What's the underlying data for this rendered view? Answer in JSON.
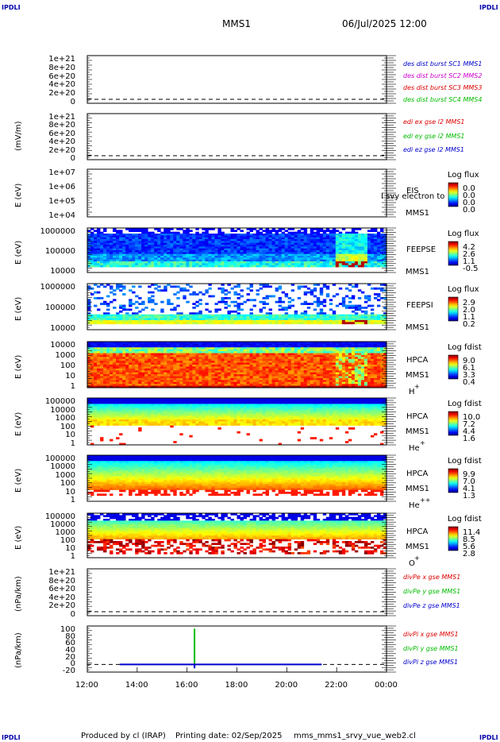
{
  "header": {
    "corner_label": "IPDLI",
    "mission": "MMS1",
    "datetime": "06/Jul/2025 12:00"
  },
  "footer": {
    "produced": "Produced by cl (IRAP)",
    "printing": "Printing date: 02/Sep/2025",
    "file": "mms_mms1_srvy_vue_web2.cl"
  },
  "chart_data": [
    {
      "type": "line",
      "ylabel": "",
      "yticks": [
        "1e+21",
        "8e+20",
        "6e+20",
        "4e+20",
        "2e+20",
        "0"
      ],
      "legend": [
        {
          "text": "des dist burst SC1 MMS1",
          "color": "#0000cc"
        },
        {
          "text": "des dist burst SC2 MMS2",
          "color": "#cc00cc"
        },
        {
          "text": "des dist burst SC3 MMS3",
          "color": "#dd0000"
        },
        {
          "text": "des dist burst SC4 MMS4",
          "color": "#00bb00"
        }
      ]
    },
    {
      "type": "line",
      "ylabel": "(mV/m)",
      "yticks": [
        "1e+21",
        "8e+20",
        "6e+20",
        "4e+20",
        "2e+20",
        "0"
      ],
      "legend": [
        {
          "text": "edi ex gse l2 MMS1",
          "color": "#dd0000"
        },
        {
          "text": "edi ey gse l2 MMS1",
          "color": "#00bb00"
        },
        {
          "text": "edi ez gse l2 MMS1",
          "color": "#0000cc"
        }
      ]
    },
    {
      "type": "heatmap",
      "ylabel": "E (eV)",
      "yticks": [
        "1e+07",
        "1e+06",
        "1e+05",
        "1e+04"
      ],
      "species": "EIS",
      "spacecraft": "MMS1",
      "overlay_text": "I svy electron to",
      "cbar_title": "Log flux",
      "cbar_values": [
        "0.0",
        "0.0",
        "0.0",
        "0.0"
      ]
    },
    {
      "type": "heatmap",
      "ylabel": "E (eV)",
      "yticks": [
        "1000000",
        "100000",
        "10000"
      ],
      "species": "FEEPSE",
      "spacecraft": "MMS1",
      "cbar_title": "Log flux",
      "cbar_values": [
        "4.2",
        "2.6",
        "1.1",
        "-0.5"
      ]
    },
    {
      "type": "heatmap",
      "ylabel": "E (eV)",
      "yticks": [
        "1000000",
        "100000",
        "10000"
      ],
      "species": "FEEPSI",
      "spacecraft": "MMS1",
      "cbar_title": "Log flux",
      "cbar_values": [
        "2.9",
        "2.0",
        "1.1",
        "0.2"
      ]
    },
    {
      "type": "heatmap",
      "ylabel": "E (eV)",
      "yticks": [
        "10000",
        "1000",
        "100",
        "10",
        "1"
      ],
      "species": "HPCA",
      "spacecraft": "MMS1",
      "ion": "H",
      "charge": "+",
      "cbar_title": "Log fdist",
      "cbar_values": [
        "9.0",
        "6.1",
        "3.3",
        "0.4"
      ]
    },
    {
      "type": "heatmap",
      "ylabel": "E (eV)",
      "yticks": [
        "100000",
        "10000",
        "1000",
        "100",
        "10",
        "1"
      ],
      "species": "HPCA",
      "spacecraft": "MMS1",
      "ion": "He",
      "charge": "+",
      "cbar_title": "Log fdist",
      "cbar_values": [
        "10.0",
        "7.2",
        "4.4",
        "1.6"
      ]
    },
    {
      "type": "heatmap",
      "ylabel": "E (eV)",
      "yticks": [
        "100000",
        "10000",
        "1000",
        "100",
        "10",
        "1"
      ],
      "species": "HPCA",
      "spacecraft": "MMS1",
      "ion": "He",
      "charge": "++",
      "cbar_title": "Log fdist",
      "cbar_values": [
        "9.9",
        "7.0",
        "4.1",
        "1.3"
      ]
    },
    {
      "type": "heatmap",
      "ylabel": "E (eV)",
      "yticks": [
        "100000",
        "10000",
        "1000",
        "100",
        "10",
        "1"
      ],
      "species": "HPCA",
      "spacecraft": "MMS1",
      "ion": "O",
      "charge": "+",
      "cbar_title": "Log fdist",
      "cbar_values": [
        "11.4",
        "8.5",
        "5.6",
        "2.8"
      ]
    },
    {
      "type": "line",
      "ylabel": "(nPa/km)",
      "yticks": [
        "1e+21",
        "8e+20",
        "6e+20",
        "4e+20",
        "2e+20",
        "0"
      ],
      "legend": [
        {
          "text": "divPe x gse MMS1",
          "color": "#dd0000"
        },
        {
          "text": "divPe y gse MMS1",
          "color": "#00bb00"
        },
        {
          "text": "divPe z gse MMS1",
          "color": "#0000cc"
        }
      ]
    },
    {
      "type": "line",
      "ylabel": "(nPa/km)",
      "yticks": [
        "100",
        "80",
        "60",
        "40",
        "20",
        "0",
        "-20"
      ],
      "ylim": [
        -20,
        100
      ],
      "legend": [
        {
          "text": "divPi x gse MMS1",
          "color": "#dd0000"
        },
        {
          "text": "divPi y gse MMS1",
          "color": "#00bb00"
        },
        {
          "text": "divPi z gse MMS1",
          "color": "#0000cc"
        }
      ],
      "series": [
        {
          "name": "divPi y gse MMS1",
          "color": "#00bb00",
          "x": [
            16.3,
            16.3
          ],
          "values": [
            -10,
            93
          ]
        },
        {
          "name": "divPi z gse MMS1",
          "color": "#0000cc",
          "x": [
            13.3,
            21.4
          ],
          "values": [
            0,
            0
          ]
        },
        {
          "name": "divPi z spike",
          "color": "#0000cc",
          "x": [
            16.3,
            16.3
          ],
          "values": [
            -10,
            0
          ]
        }
      ]
    }
  ],
  "xaxis": {
    "ticks": [
      "12:00",
      "14:00",
      "16:00",
      "18:00",
      "20:00",
      "22:00",
      "00:00"
    ],
    "range_hours": [
      12,
      24
    ]
  }
}
